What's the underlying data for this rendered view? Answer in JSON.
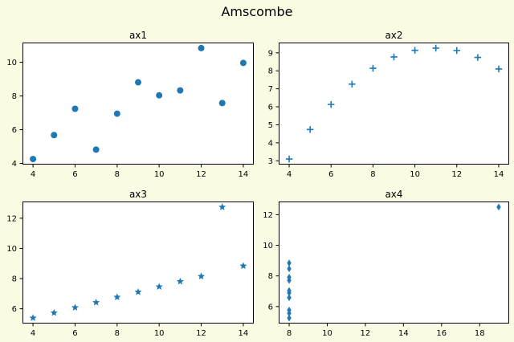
{
  "figure": {
    "suptitle": "Amscombe",
    "background_color": "#FBFBE4",
    "accent_color": "#1f77b4"
  },
  "chart_data": [
    {
      "type": "scatter",
      "title": "ax1",
      "marker": "circle",
      "color": "#1f77b4",
      "x": [
        10,
        8,
        13,
        9,
        11,
        14,
        6,
        4,
        12,
        7,
        5
      ],
      "y": [
        8.04,
        6.95,
        7.58,
        8.81,
        8.33,
        9.96,
        7.24,
        4.26,
        10.84,
        4.82,
        5.68
      ],
      "xlim": [
        3.5,
        14.5
      ],
      "ylim": [
        3.93,
        11.17
      ],
      "xticks": [
        4,
        6,
        8,
        10,
        12,
        14
      ],
      "yticks": [
        4,
        6,
        8,
        10
      ],
      "grid": false
    },
    {
      "type": "scatter",
      "title": "ax2",
      "marker": "plus",
      "color": "#1f77b4",
      "x": [
        10,
        8,
        13,
        9,
        11,
        14,
        6,
        4,
        12,
        7,
        5
      ],
      "y": [
        9.14,
        8.14,
        8.74,
        8.77,
        9.26,
        8.1,
        6.13,
        3.1,
        9.13,
        7.26,
        4.74
      ],
      "xlim": [
        3.5,
        14.5
      ],
      "ylim": [
        2.79,
        9.57
      ],
      "xticks": [
        4,
        6,
        8,
        10,
        12,
        14
      ],
      "yticks": [
        3,
        4,
        5,
        6,
        7,
        8,
        9
      ],
      "grid": false
    },
    {
      "type": "scatter",
      "title": "ax3",
      "marker": "star",
      "color": "#1f77b4",
      "x": [
        10,
        8,
        13,
        9,
        11,
        14,
        6,
        4,
        12,
        7,
        5
      ],
      "y": [
        7.46,
        6.77,
        12.74,
        7.11,
        7.81,
        8.84,
        6.08,
        5.39,
        8.15,
        6.42,
        5.73
      ],
      "xlim": [
        3.5,
        14.5
      ],
      "ylim": [
        5.02,
        13.11
      ],
      "xticks": [
        4,
        6,
        8,
        10,
        12,
        14
      ],
      "yticks": [
        6,
        8,
        10,
        12
      ],
      "grid": false
    },
    {
      "type": "scatter",
      "title": "ax4",
      "marker": "thin-diamond",
      "color": "#1f77b4",
      "x": [
        8,
        8,
        8,
        8,
        8,
        8,
        8,
        19,
        8,
        8,
        8
      ],
      "y": [
        6.58,
        5.76,
        7.71,
        8.84,
        8.47,
        7.04,
        5.25,
        12.5,
        5.56,
        7.91,
        6.89
      ],
      "xlim": [
        7.45,
        19.55
      ],
      "ylim": [
        4.89,
        12.86
      ],
      "xticks": [
        8,
        10,
        12,
        14,
        16,
        18
      ],
      "yticks": [
        6,
        8,
        10,
        12
      ],
      "grid": false
    }
  ]
}
